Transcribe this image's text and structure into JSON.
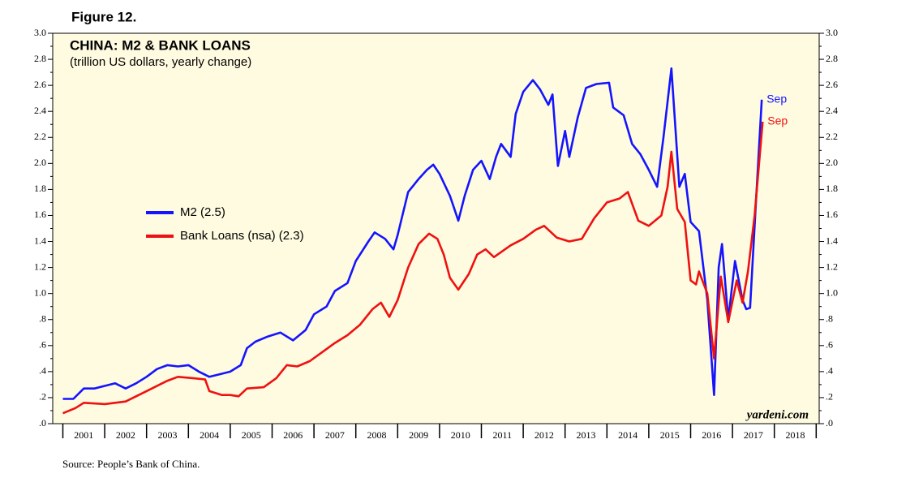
{
  "chart_data": {
    "type": "line",
    "figure_label": "Figure 12.",
    "title": "CHINA: M2 & BANK LOANS",
    "subtitle": "(trillion US dollars, yearly change)",
    "watermark": "yardeni.com",
    "source": "Source: People’s Bank of China.",
    "ylim": [
      0,
      3.0
    ],
    "yticks": [
      {
        "value": 0,
        "label": ".0"
      },
      {
        "value": 0.2,
        "label": ".2"
      },
      {
        "value": 0.4,
        "label": ".4"
      },
      {
        "value": 0.6,
        "label": ".6"
      },
      {
        "value": 0.8,
        "label": ".8"
      },
      {
        "value": 1.0,
        "label": "1.0"
      },
      {
        "value": 1.2,
        "label": "1.2"
      },
      {
        "value": 1.4,
        "label": "1.4"
      },
      {
        "value": 1.6,
        "label": "1.6"
      },
      {
        "value": 1.8,
        "label": "1.8"
      },
      {
        "value": 2.0,
        "label": "2.0"
      },
      {
        "value": 2.2,
        "label": "2.2"
      },
      {
        "value": 2.4,
        "label": "2.4"
      },
      {
        "value": 2.6,
        "label": "2.6"
      },
      {
        "value": 2.8,
        "label": "2.8"
      },
      {
        "value": 3.0,
        "label": "3.0"
      }
    ],
    "xlim": [
      2001,
      2019
    ],
    "xticks": [
      {
        "value": 2001.5,
        "label": "2001"
      },
      {
        "value": 2002.5,
        "label": "2002"
      },
      {
        "value": 2003.5,
        "label": "2003"
      },
      {
        "value": 2004.5,
        "label": "2004"
      },
      {
        "value": 2005.5,
        "label": "2005"
      },
      {
        "value": 2006.5,
        "label": "2006"
      },
      {
        "value": 2007.5,
        "label": "2007"
      },
      {
        "value": 2008.5,
        "label": "2008"
      },
      {
        "value": 2009.5,
        "label": "2009"
      },
      {
        "value": 2010.5,
        "label": "2010"
      },
      {
        "value": 2011.5,
        "label": "2011"
      },
      {
        "value": 2012.5,
        "label": "2012"
      },
      {
        "value": 2013.5,
        "label": "2013"
      },
      {
        "value": 2014.5,
        "label": "2014"
      },
      {
        "value": 2015.5,
        "label": "2015"
      },
      {
        "value": 2016.5,
        "label": "2016"
      },
      {
        "value": 2017.5,
        "label": "2017"
      },
      {
        "value": 2018.5,
        "label": "2018"
      }
    ],
    "series": [
      {
        "name": "M2 (2.5)",
        "color": "#1414ff",
        "end_label": "Sep",
        "x": [
          2001.0,
          2001.25,
          2001.5,
          2001.75,
          2002.0,
          2002.25,
          2002.5,
          2002.75,
          2003.0,
          2003.25,
          2003.5,
          2003.75,
          2004.0,
          2004.25,
          2004.5,
          2004.75,
          2005.0,
          2005.25,
          2005.4,
          2005.6,
          2005.9,
          2006.2,
          2006.5,
          2006.8,
          2007.0,
          2007.3,
          2007.5,
          2007.8,
          2008.0,
          2008.3,
          2008.45,
          2008.7,
          2008.9,
          2009.0,
          2009.25,
          2009.5,
          2009.7,
          2009.85,
          2010.0,
          2010.25,
          2010.45,
          2010.6,
          2010.8,
          2011.0,
          2011.2,
          2011.35,
          2011.47,
          2011.7,
          2011.82,
          2012.0,
          2012.23,
          2012.4,
          2012.6,
          2012.7,
          2012.83,
          2013.0,
          2013.1,
          2013.3,
          2013.5,
          2013.75,
          2014.05,
          2014.15,
          2014.4,
          2014.6,
          2014.8,
          2015.0,
          2015.2,
          2015.35,
          2015.54,
          2015.73,
          2015.86,
          2016.0,
          2016.2,
          2016.4,
          2016.56,
          2016.67,
          2016.75,
          2016.9,
          2017.06,
          2017.24,
          2017.33,
          2017.42,
          2017.56,
          2017.7
        ],
        "values": [
          0.19,
          0.19,
          0.27,
          0.27,
          0.29,
          0.31,
          0.27,
          0.31,
          0.36,
          0.42,
          0.45,
          0.44,
          0.45,
          0.4,
          0.36,
          0.38,
          0.4,
          0.45,
          0.58,
          0.63,
          0.67,
          0.7,
          0.64,
          0.72,
          0.84,
          0.9,
          1.02,
          1.08,
          1.25,
          1.4,
          1.47,
          1.42,
          1.34,
          1.45,
          1.78,
          1.88,
          1.95,
          1.99,
          1.92,
          1.75,
          1.56,
          1.75,
          1.95,
          2.02,
          1.88,
          2.05,
          2.15,
          2.05,
          2.38,
          2.55,
          2.64,
          2.57,
          2.45,
          2.53,
          1.98,
          2.25,
          2.05,
          2.35,
          2.58,
          2.61,
          2.62,
          2.43,
          2.37,
          2.15,
          2.07,
          1.95,
          1.82,
          2.2,
          2.73,
          1.82,
          1.92,
          1.55,
          1.48,
          0.95,
          0.22,
          1.2,
          1.38,
          0.8,
          1.25,
          0.95,
          0.88,
          0.89,
          1.7,
          2.49
        ]
      },
      {
        "name": "Bank Loans (nsa) (2.3)",
        "color": "#ee1111",
        "end_label": "Sep",
        "x": [
          2001.0,
          2001.3,
          2001.5,
          2002.0,
          2002.5,
          2003.0,
          2003.5,
          2003.75,
          2004.1,
          2004.4,
          2004.5,
          2004.8,
          2005.0,
          2005.2,
          2005.4,
          2005.8,
          2006.1,
          2006.35,
          2006.6,
          2006.9,
          2007.2,
          2007.5,
          2007.8,
          2008.1,
          2008.4,
          2008.6,
          2008.8,
          2009.0,
          2009.25,
          2009.5,
          2009.75,
          2009.95,
          2010.1,
          2010.25,
          2010.45,
          2010.7,
          2010.9,
          2011.1,
          2011.3,
          2011.7,
          2012.0,
          2012.3,
          2012.5,
          2012.8,
          2013.1,
          2013.4,
          2013.7,
          2014.0,
          2014.3,
          2014.5,
          2014.75,
          2015.0,
          2015.3,
          2015.45,
          2015.54,
          2015.68,
          2015.86,
          2016.0,
          2016.13,
          2016.2,
          2016.4,
          2016.56,
          2016.72,
          2016.9,
          2017.1,
          2017.24,
          2017.37,
          2017.53,
          2017.72
        ],
        "values": [
          0.08,
          0.12,
          0.16,
          0.15,
          0.17,
          0.25,
          0.33,
          0.36,
          0.35,
          0.34,
          0.25,
          0.22,
          0.22,
          0.21,
          0.27,
          0.28,
          0.35,
          0.45,
          0.44,
          0.48,
          0.55,
          0.62,
          0.68,
          0.76,
          0.88,
          0.93,
          0.82,
          0.95,
          1.2,
          1.38,
          1.46,
          1.42,
          1.3,
          1.12,
          1.03,
          1.15,
          1.3,
          1.34,
          1.28,
          1.37,
          1.42,
          1.49,
          1.52,
          1.43,
          1.4,
          1.42,
          1.58,
          1.7,
          1.73,
          1.78,
          1.56,
          1.52,
          1.6,
          1.82,
          2.09,
          1.65,
          1.55,
          1.1,
          1.07,
          1.17,
          1.0,
          0.5,
          1.13,
          0.78,
          1.1,
          0.93,
          1.17,
          1.6,
          2.32
        ]
      }
    ]
  }
}
